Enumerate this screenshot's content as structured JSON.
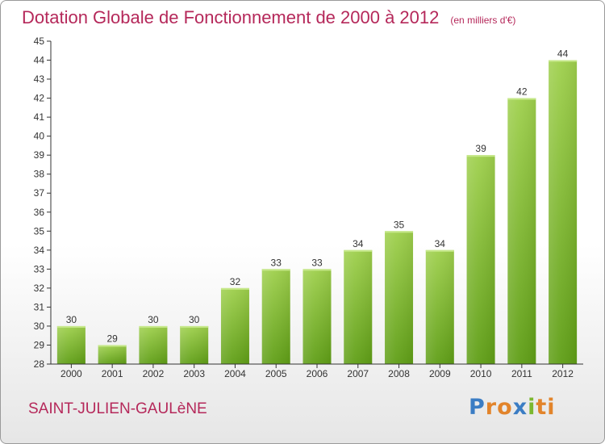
{
  "header": {
    "title": "Dotation Globale de Fonctionnement de 2000 à 2012",
    "subtitle": "(en milliers d'€)"
  },
  "footer": {
    "place": "SAINT-JULIEN-GAULèNE",
    "logo_letters": [
      "P",
      "r",
      "o",
      "x",
      "i",
      "ti"
    ]
  },
  "colors": {
    "title": "#b5285a",
    "bar_top": "#9fd04d",
    "bar_bottom": "#5f9e16"
  },
  "chart_data": {
    "type": "bar",
    "title": "Dotation Globale de Fonctionnement de 2000 à 2012",
    "subtitle": "(en milliers d'€)",
    "xlabel": "",
    "ylabel": "",
    "categories": [
      "2000",
      "2001",
      "2002",
      "2003",
      "2004",
      "2005",
      "2006",
      "2007",
      "2008",
      "2009",
      "2010",
      "2011",
      "2012"
    ],
    "values": [
      30,
      29,
      30,
      30,
      32,
      33,
      33,
      34,
      35,
      34,
      39,
      42,
      44
    ],
    "ylim": [
      28,
      45
    ],
    "yticks": [
      28,
      29,
      30,
      31,
      32,
      33,
      34,
      35,
      36,
      37,
      38,
      39,
      40,
      41,
      42,
      43,
      44,
      45
    ],
    "grid": false,
    "legend": "none"
  }
}
